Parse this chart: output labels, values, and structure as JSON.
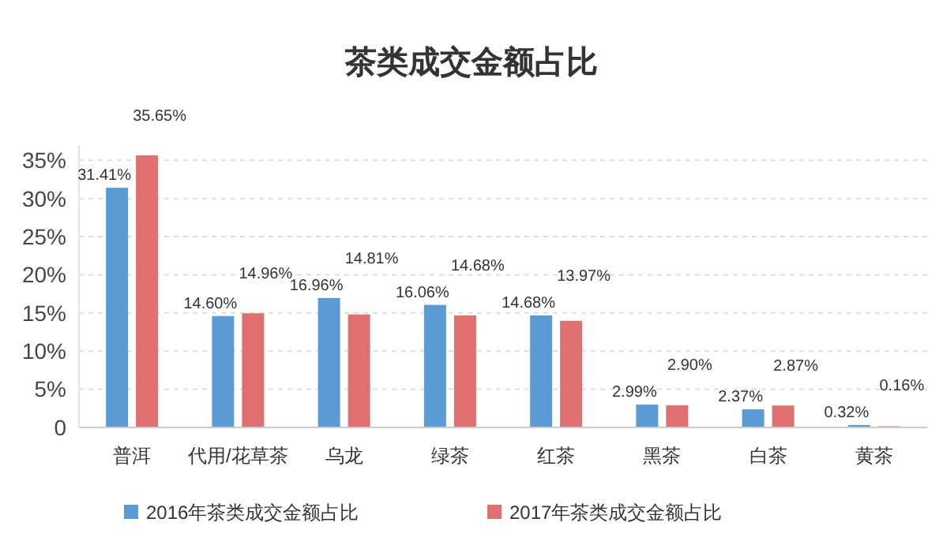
{
  "chart_data": {
    "type": "bar",
    "title": "茶类成交金额占比",
    "categories": [
      "普洱",
      "代用/花草茶",
      "乌龙",
      "绿茶",
      "红茶",
      "黑茶",
      "白茶",
      "黄茶"
    ],
    "series": [
      {
        "name": "2016年茶类成交金额占比",
        "color": "#5b9bd5",
        "values": [
          31.41,
          14.6,
          16.96,
          16.06,
          14.68,
          2.99,
          2.37,
          0.32
        ],
        "value_labels": [
          "31.41%",
          "14.60%",
          "16.96%",
          "16.06%",
          "14.68%",
          "2.99%",
          "2.37%",
          "0.32%"
        ]
      },
      {
        "name": "2017年茶类成交金额占比",
        "color": "#e07070",
        "values": [
          35.65,
          14.96,
          14.81,
          14.68,
          13.97,
          2.9,
          2.87,
          0.16
        ],
        "value_labels": [
          "35.65%",
          "14.96%",
          "14.81%",
          "14.68%",
          "13.97%",
          "2.90%",
          "2.87%",
          "0.16%"
        ]
      }
    ],
    "ylim": [
      0,
      37
    ],
    "yticks": [
      {
        "value": 0,
        "label": "0"
      },
      {
        "value": 5,
        "label": "5%"
      },
      {
        "value": 10,
        "label": "10%"
      },
      {
        "value": 15,
        "label": "15%"
      },
      {
        "value": 20,
        "label": "20%"
      },
      {
        "value": 25,
        "label": "25%"
      },
      {
        "value": 30,
        "label": "30%"
      },
      {
        "value": 35,
        "label": "35%"
      }
    ],
    "grid": "y",
    "legend": "bottom"
  }
}
